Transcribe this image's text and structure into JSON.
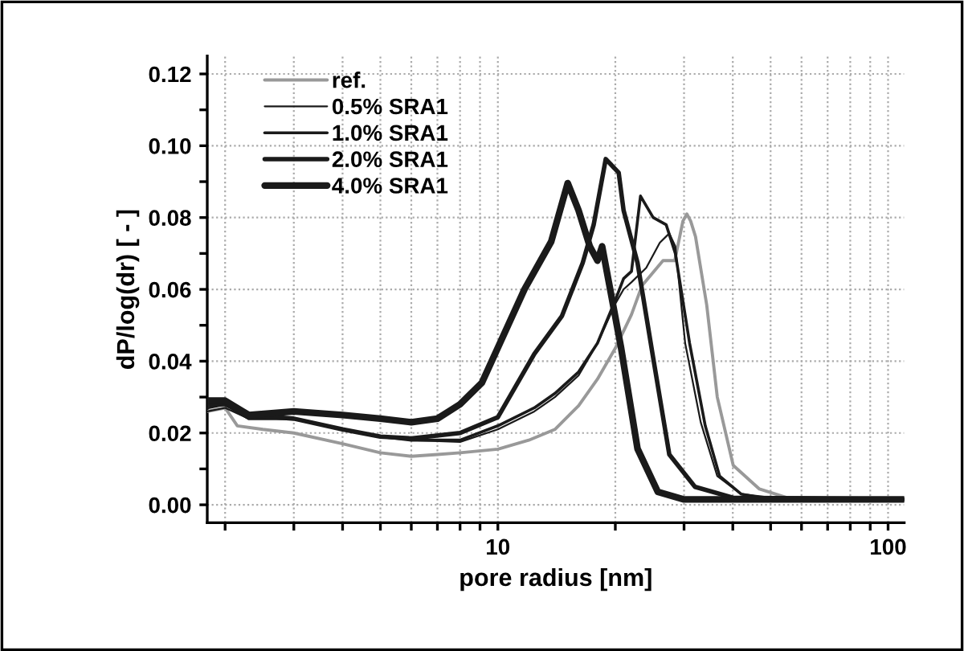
{
  "chart_data": {
    "type": "line",
    "xlabel": "pore radius [nm]",
    "ylabel": "dP/log(dr) [ - ]",
    "log": "x",
    "grid": true,
    "legend": "top left",
    "line_style": "solid",
    "marker": "none",
    "xlim": [
      1.8,
      110
    ],
    "ylim": [
      -0.005,
      0.125
    ],
    "xticks": [
      {
        "value": 2,
        "label": null
      },
      {
        "value": 3,
        "label": null
      },
      {
        "value": 4,
        "label": null
      },
      {
        "value": 5,
        "label": null
      },
      {
        "value": 6,
        "label": null
      },
      {
        "value": 7,
        "label": null
      },
      {
        "value": 8,
        "label": null
      },
      {
        "value": 9,
        "label": null
      },
      10,
      {
        "value": 20,
        "label": null
      },
      {
        "value": 30,
        "label": null
      },
      {
        "value": 40,
        "label": null
      },
      {
        "value": 50,
        "label": null
      },
      {
        "value": 60,
        "label": null
      },
      {
        "value": 70,
        "label": null
      },
      {
        "value": 80,
        "label": null
      },
      {
        "value": 90,
        "label": null
      },
      100
    ],
    "yticks": [
      {
        "value": 0,
        "label": "0.00"
      },
      {
        "value": 0.01,
        "label": null
      },
      {
        "value": 0.02,
        "label": "0.02"
      },
      {
        "value": 0.03,
        "label": null
      },
      {
        "value": 0.04,
        "label": "0.04"
      },
      {
        "value": 0.05,
        "label": null
      },
      {
        "value": 0.06,
        "label": "0.06"
      },
      {
        "value": 0.07,
        "label": null
      },
      {
        "value": 0.08,
        "label": "0.08"
      },
      {
        "value": 0.09,
        "label": null
      },
      {
        "value": 0.1,
        "label": "0.10"
      },
      {
        "value": 0.11,
        "label": null
      },
      {
        "value": 0.12,
        "label": "0.12"
      }
    ],
    "series": [
      {
        "name": "ref.",
        "color": "#999999",
        "x": [
          1.8,
          2.0,
          2.15,
          2.5,
          3,
          4,
          5,
          6,
          7,
          8,
          10,
          12,
          14,
          16.1,
          18,
          20,
          22,
          23.4,
          26.5,
          28.4,
          29.8,
          30.5,
          31.2,
          32.1,
          34.3,
          36.5,
          40.1,
          46.8,
          55,
          110
        ],
        "values": [
          0.026,
          0.027,
          0.022,
          0.021,
          0.02,
          0.017,
          0.0145,
          0.0135,
          0.014,
          0.0145,
          0.0155,
          0.018,
          0.021,
          0.0276,
          0.035,
          0.0436,
          0.053,
          0.061,
          0.068,
          0.068,
          0.079,
          0.081,
          0.079,
          0.0747,
          0.0556,
          0.03,
          0.011,
          0.0044,
          0.002,
          0.0015
        ]
      },
      {
        "name": "0.5% SRA1",
        "color": "#1a1a1a",
        "x": [
          1.8,
          2.0,
          2.3,
          3,
          4,
          5,
          6,
          8,
          10,
          12.4,
          14,
          16.1,
          18,
          20,
          21,
          22,
          24,
          26,
          27.5,
          28.5,
          30.2,
          33.1,
          36.5,
          42,
          50,
          110
        ],
        "values": [
          0.026,
          0.027,
          0.024,
          0.024,
          0.021,
          0.019,
          0.018,
          0.0175,
          0.021,
          0.026,
          0.03,
          0.036,
          0.045,
          0.056,
          0.06,
          0.062,
          0.066,
          0.073,
          0.0756,
          0.072,
          0.045,
          0.023,
          0.008,
          0.003,
          0.002,
          0.0015
        ]
      },
      {
        "name": "1.0% SRA1",
        "color": "#1a1a1a",
        "x": [
          1.8,
          2.0,
          2.3,
          3,
          4,
          5,
          6,
          8,
          10,
          12.4,
          14,
          16.1,
          18,
          20,
          21,
          22,
          23.2,
          25,
          27,
          28.5,
          31,
          34,
          37,
          42,
          50,
          110
        ],
        "values": [
          0.027,
          0.028,
          0.024,
          0.024,
          0.021,
          0.019,
          0.018,
          0.018,
          0.022,
          0.027,
          0.031,
          0.037,
          0.045,
          0.057,
          0.063,
          0.065,
          0.086,
          0.08,
          0.078,
          0.07,
          0.045,
          0.022,
          0.008,
          0.003,
          0.0015,
          0.0015
        ]
      },
      {
        "name": "2.0% SRA1",
        "color": "#1a1a1a",
        "x": [
          1.8,
          2.0,
          2.3,
          3,
          4,
          5,
          6,
          8,
          10,
          12.4,
          14.6,
          16.5,
          17.6,
          18.9,
          20.4,
          21,
          22.8,
          25,
          27.5,
          32,
          40,
          110
        ],
        "values": [
          0.028,
          0.028,
          0.025,
          0.024,
          0.021,
          0.019,
          0.0185,
          0.02,
          0.0244,
          0.042,
          0.0526,
          0.0674,
          0.078,
          0.0963,
          0.0925,
          0.082,
          0.0674,
          0.041,
          0.014,
          0.005,
          0.002,
          0.0015
        ]
      },
      {
        "name": "4.0% SRA1",
        "color": "#1a1a1a",
        "x": [
          1.8,
          2.0,
          2.3,
          3,
          4,
          5,
          6,
          7,
          8,
          9.1,
          11.7,
          13.7,
          15.1,
          16.1,
          17.2,
          18,
          18.5,
          19.4,
          20.7,
          22.8,
          25.7,
          30,
          110
        ],
        "values": [
          0.029,
          0.029,
          0.025,
          0.026,
          0.025,
          0.024,
          0.023,
          0.024,
          0.028,
          0.034,
          0.06,
          0.0733,
          0.0896,
          0.082,
          0.072,
          0.068,
          0.072,
          0.06,
          0.0436,
          0.0156,
          0.0036,
          0.0015,
          0.0015
        ]
      }
    ]
  }
}
